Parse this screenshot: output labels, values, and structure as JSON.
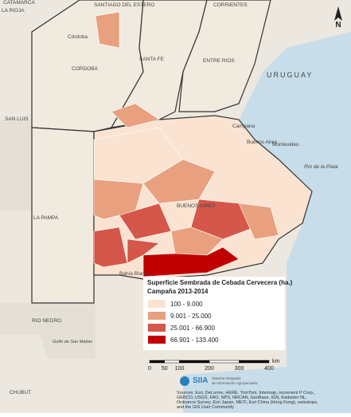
{
  "map": {
    "labels": [
      "CATAMARCA",
      "SANTIAGO DEL ESTERO",
      "CORRIENTES",
      "LA RIOJA",
      "Córdoba",
      "CORDOBA",
      "SANTA FE",
      "ENTRE RIOS",
      "URUGUAY",
      "SAN LUIS",
      "Campana",
      "Buenos Aires",
      "Montevideo",
      "Río de la Plata",
      "LA PAMPA",
      "BUENOS AIRES",
      "Bahía Blanca",
      "RIO NEGRO",
      "CHUBUT",
      "Golfo de San Matías"
    ]
  },
  "north": "N",
  "legend": {
    "title": "Superficie Sembrada de Cebada Cervecera (ha.)",
    "subtitle": "Campaña 2013-2014",
    "classes": [
      {
        "label": "100 - 9.000",
        "color": "#fbe3d2"
      },
      {
        "label": "9.001 - 25.000",
        "color": "#e8a07f"
      },
      {
        "label": "25.001 - 66.900",
        "color": "#d4574a"
      },
      {
        "label": "66.901 - 133.400",
        "color": "#c00000"
      }
    ]
  },
  "scale": {
    "ticks": [
      0,
      50,
      100,
      200,
      300,
      400
    ],
    "unit": "km"
  },
  "logo": {
    "name": "SIIA",
    "subtitle": [
      "Sistema Integrado",
      "de Información Agropecuaria"
    ]
  },
  "sources": [
    "Sources: Esri, DeLorme, HERE, TomTom, Intermap, increment P Corp.,",
    "GEBCO, USGS, FAO, NPS, NRCAN, GeoBase, IGN, Kadaster NL,",
    "Ordnance Survey, Esri Japan, METI, Esri China (Hong Kong), swisstopo,",
    "and the GIS User Community"
  ]
}
